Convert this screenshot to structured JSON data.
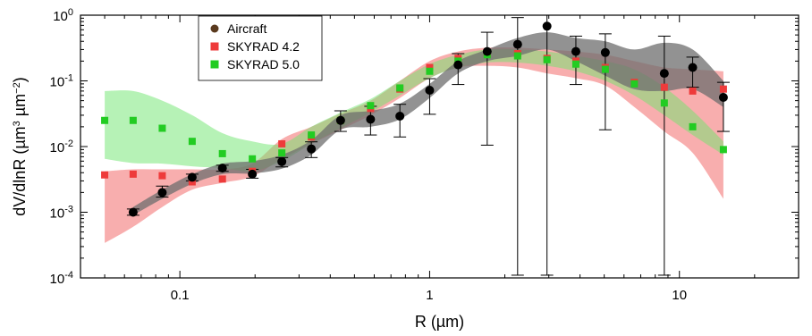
{
  "chart_data": {
    "type": "scatter",
    "xscale": "log",
    "yscale": "log",
    "xlim": [
      0.04,
      30
    ],
    "ylim": [
      0.0001,
      1
    ],
    "xlabel": "R (µm)",
    "ylabel": {
      "main": "dV/dlnR (µm",
      "exp1": "3",
      "mid": " µm",
      "exp2": "−2",
      "end": ")"
    },
    "xticks": [
      {
        "value": 0.1,
        "label": "0.1"
      },
      {
        "value": 1,
        "label": "1"
      },
      {
        "value": 10,
        "label": "10"
      }
    ],
    "yticks": [
      {
        "value": 0.0001,
        "base": "10",
        "exp": "-4"
      },
      {
        "value": 0.001,
        "base": "10",
        "exp": "-3"
      },
      {
        "value": 0.01,
        "base": "10",
        "exp": "-2"
      },
      {
        "value": 0.1,
        "base": "10",
        "exp": "-1"
      },
      {
        "value": 1,
        "base": "10",
        "exp": "0"
      }
    ],
    "legend_position": "top-left",
    "series": [
      {
        "name": "Aircraft",
        "marker": "circle",
        "color": "#000000",
        "legend_color": "#5a3a1e",
        "band_color": "#6e6e6e",
        "x": [
          0.065,
          0.085,
          0.112,
          0.148,
          0.195,
          0.256,
          0.336,
          0.44,
          0.58,
          0.76,
          1.0,
          1.3,
          1.7,
          2.25,
          2.95,
          3.85,
          5.05,
          6.6,
          8.7,
          11.3,
          15.0
        ],
        "y": [
          0.001,
          0.002,
          0.0034,
          0.0047,
          0.0038,
          0.0059,
          0.0092,
          0.025,
          0.026,
          0.029,
          0.072,
          0.175,
          0.28,
          0.36,
          0.68,
          0.28,
          0.27,
          0.0,
          0.13,
          0.16,
          0.056
        ],
        "y_low": [
          0.0009,
          0.0017,
          0.003,
          0.0042,
          0.0033,
          0.0049,
          0.0068,
          0.017,
          0.015,
          0.014,
          0.031,
          0.088,
          0.0105,
          0.00011,
          0.00011,
          0.088,
          0.018,
          0.0,
          0.00011,
          0.08,
          0.017
        ],
        "y_high": [
          0.00112,
          0.0025,
          0.0038,
          0.0052,
          0.0045,
          0.0068,
          0.0118,
          0.035,
          0.041,
          0.044,
          0.108,
          0.26,
          0.55,
          0.92,
          1.0,
          0.48,
          0.52,
          0.0,
          0.48,
          0.23,
          0.095
        ],
        "band_x": [
          0.065,
          0.085,
          0.112,
          0.148,
          0.195,
          0.256,
          0.336,
          0.44,
          0.58,
          0.76,
          1.0,
          1.3,
          1.7,
          2.25,
          2.95,
          3.85,
          5.05,
          6.6,
          8.7,
          11.3,
          15.0
        ],
        "band_low": [
          0.0009,
          0.0016,
          0.0027,
          0.0038,
          0.0039,
          0.0046,
          0.0075,
          0.018,
          0.02,
          0.026,
          0.055,
          0.13,
          0.2,
          0.24,
          0.3,
          0.2,
          0.12,
          0.075,
          0.07,
          0.075,
          0.04
        ],
        "band_high": [
          0.0012,
          0.0022,
          0.0038,
          0.0055,
          0.006,
          0.0075,
          0.0125,
          0.03,
          0.035,
          0.045,
          0.09,
          0.2,
          0.3,
          0.45,
          0.55,
          0.45,
          0.4,
          0.3,
          0.38,
          0.3,
          0.1
        ]
      },
      {
        "name": "SKYRAD 4.2",
        "marker": "square",
        "color": "#ee3b3b",
        "band_color": "#f26b6b",
        "x": [
          0.05,
          0.065,
          0.085,
          0.112,
          0.148,
          0.195,
          0.256,
          0.336,
          0.44,
          0.58,
          0.76,
          1.0,
          1.3,
          1.7,
          2.25,
          2.95,
          3.85,
          5.05,
          6.6,
          8.7,
          11.3,
          15.0
        ],
        "y": [
          0.0037,
          0.0038,
          0.0036,
          0.0029,
          0.0032,
          0.0042,
          0.011,
          0.014,
          0.025,
          0.038,
          0.075,
          0.16,
          0.22,
          0.26,
          0.26,
          0.22,
          0.2,
          0.16,
          0.095,
          0.08,
          0.07,
          0.075
        ],
        "band_x": [
          0.05,
          0.065,
          0.085,
          0.112,
          0.148,
          0.195,
          0.256,
          0.336,
          0.44,
          0.58,
          0.76,
          1.0,
          1.3,
          1.7,
          2.25,
          2.95,
          3.85,
          5.05,
          6.6,
          8.7,
          11.3,
          15.0
        ],
        "band_low": [
          0.00034,
          0.0006,
          0.0012,
          0.0022,
          0.0028,
          0.0035,
          0.0065,
          0.011,
          0.018,
          0.03,
          0.055,
          0.11,
          0.16,
          0.17,
          0.16,
          0.13,
          0.11,
          0.085,
          0.04,
          0.017,
          0.008,
          0.0016
        ],
        "band_high": [
          0.0042,
          0.0045,
          0.0045,
          0.0045,
          0.0045,
          0.0055,
          0.013,
          0.02,
          0.032,
          0.05,
          0.1,
          0.2,
          0.28,
          0.32,
          0.32,
          0.3,
          0.28,
          0.25,
          0.2,
          0.16,
          0.15,
          0.14
        ]
      },
      {
        "name": "SKYRAD 5.0",
        "marker": "square",
        "color": "#22cc22",
        "band_color": "#6ee66e",
        "x": [
          0.05,
          0.065,
          0.085,
          0.112,
          0.148,
          0.195,
          0.256,
          0.336,
          0.44,
          0.58,
          0.76,
          1.0,
          1.3,
          1.7,
          2.25,
          2.95,
          3.85,
          5.05,
          6.6,
          8.7,
          11.3,
          15.0
        ],
        "y": [
          0.025,
          0.025,
          0.019,
          0.012,
          0.0078,
          0.0065,
          0.008,
          0.015,
          0.025,
          0.042,
          0.078,
          0.14,
          0.2,
          0.25,
          0.24,
          0.21,
          0.18,
          0.15,
          0.09,
          0.046,
          0.02,
          0.009
        ],
        "band_x": [
          0.05,
          0.065,
          0.085,
          0.112,
          0.148,
          0.195,
          0.256,
          0.336,
          0.44,
          0.58,
          0.76,
          1.0,
          1.3,
          1.7,
          2.25,
          2.95,
          3.85,
          5.05,
          6.6,
          8.7,
          11.3,
          15.0
        ],
        "band_low": [
          0.0065,
          0.0056,
          0.0055,
          0.005,
          0.0047,
          0.0042,
          0.006,
          0.011,
          0.019,
          0.033,
          0.06,
          0.11,
          0.16,
          0.19,
          0.19,
          0.17,
          0.14,
          0.1,
          0.06,
          0.03,
          0.015,
          0.0075
        ],
        "band_high": [
          0.07,
          0.07,
          0.05,
          0.03,
          0.016,
          0.012,
          0.011,
          0.02,
          0.033,
          0.053,
          0.1,
          0.18,
          0.25,
          0.3,
          0.3,
          0.28,
          0.24,
          0.2,
          0.15,
          0.08,
          0.035,
          0.012
        ]
      }
    ]
  }
}
